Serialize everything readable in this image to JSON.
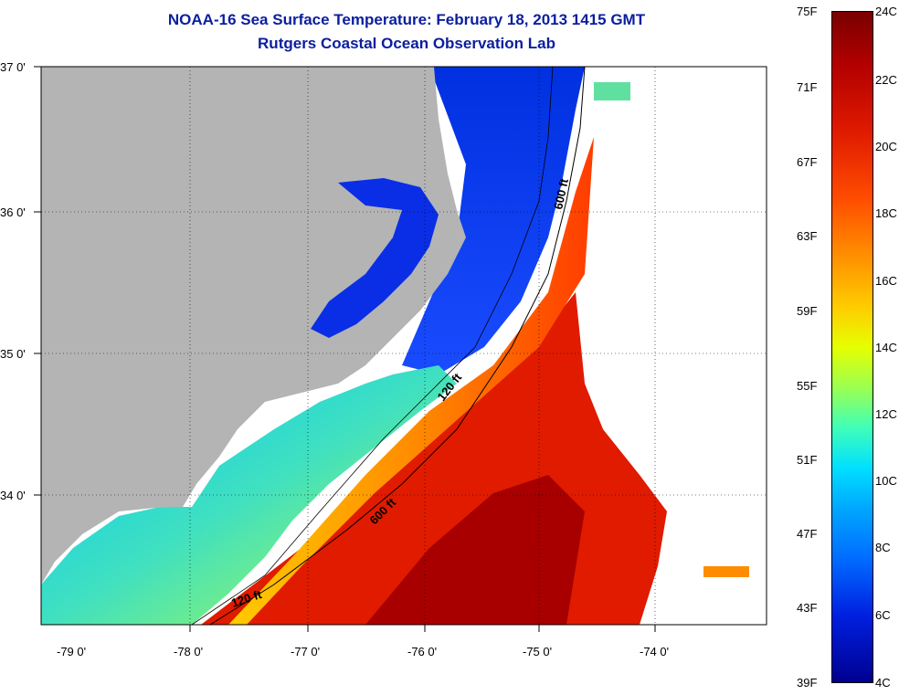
{
  "title": "NOAA-16 Sea Surface Temperature:  February 18, 2013 1415 GMT",
  "subtitle": "Rutgers Coastal Ocean Observation Lab",
  "lat_labels": [
    "37 0'",
    "36 0'",
    "35 0'",
    "34 0'"
  ],
  "lon_labels": [
    "-79 0'",
    "-78 0'",
    "-77 0'",
    "-76 0'",
    "-75 0'",
    "-74 0'"
  ],
  "isobath_labels": [
    "600 ft",
    "120 ft",
    "600 ft",
    "120 ft"
  ],
  "colorbar": {
    "fahrenheit": [
      "75F",
      "71F",
      "67F",
      "63F",
      "59F",
      "55F",
      "51F",
      "47F",
      "43F",
      "39F"
    ],
    "celsius": [
      "24C",
      "22C",
      "20C",
      "18C",
      "16C",
      "14C",
      "12C",
      "10C",
      "8C",
      "6C",
      "4C"
    ],
    "top_color": "#7a0000",
    "bottom_color": "#000090"
  },
  "colors": {
    "land": "#b4b4b4",
    "cold_water": "#0a2ee6",
    "warm_water": "#e01b00",
    "title": "#0b1e9e"
  }
}
